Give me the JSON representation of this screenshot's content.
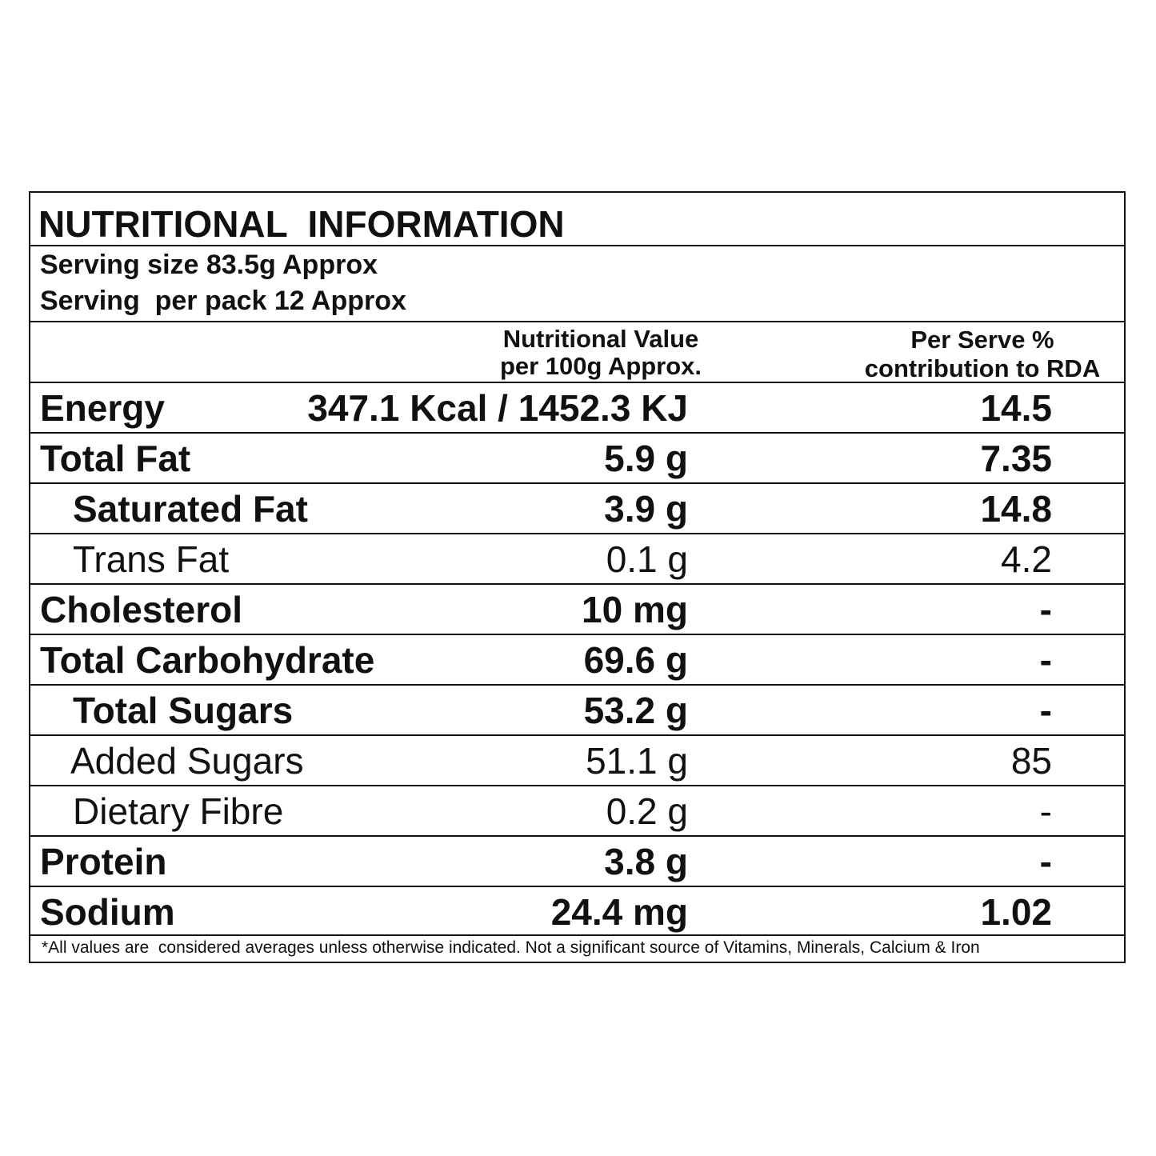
{
  "title": "NUTRITIONAL  INFORMATION",
  "serving": {
    "size": "Serving size 83.5g Approx",
    "per_pack": "Serving  per pack 12 Approx"
  },
  "columns": {
    "value_line1": "Nutritional Value",
    "value_line2": "per 100g Approx.",
    "rda_line1": "Per Serve %",
    "rda_line2": "contribution to RDA"
  },
  "rows": [
    {
      "label": "Energy",
      "value": "347.1 Kcal / 1452.3 KJ",
      "rda": "14.5"
    },
    {
      "label": "Total Fat",
      "value": "5.9 g",
      "rda": "7.35"
    },
    {
      "label": "Saturated Fat",
      "value": "3.9 g",
      "rda": "14.8"
    },
    {
      "label": "Trans Fat",
      "value": "0.1 g",
      "rda": "4.2"
    },
    {
      "label": "Cholesterol",
      "value": "10 mg",
      "rda": "-"
    },
    {
      "label": "Total Carbohydrate",
      "value": "69.6 g",
      "rda": "-"
    },
    {
      "label": "Total Sugars",
      "value": "53.2 g",
      "rda": "-"
    },
    {
      "label": "Added Sugars",
      "value": "51.1 g",
      "rda": "85"
    },
    {
      "label": "Dietary Fibre",
      "value": "0.2 g",
      "rda": "-"
    },
    {
      "label": "Protein",
      "value": "3.8 g",
      "rda": "-"
    },
    {
      "label": "Sodium",
      "value": "24.4 mg",
      "rda": "1.02"
    }
  ],
  "footnote": "*All values are  considered averages unless otherwise indicated. Not a significant source of Vitamins, Minerals, Calcium & Iron"
}
